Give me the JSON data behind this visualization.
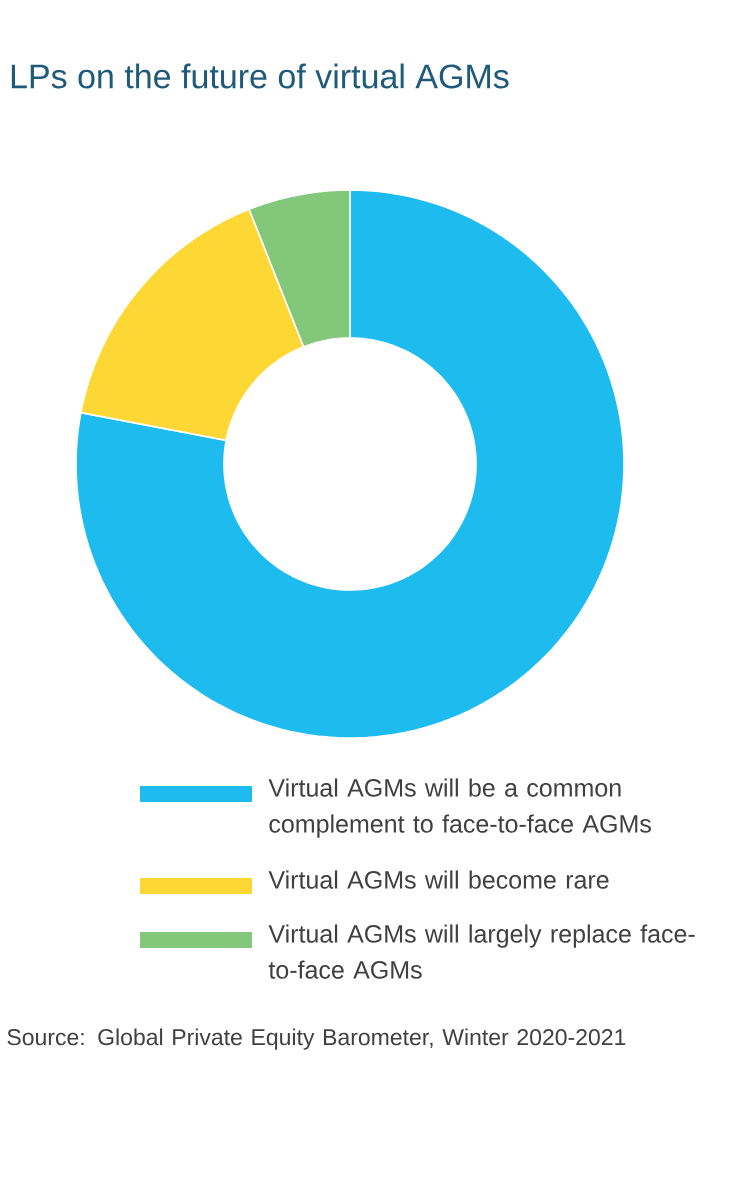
{
  "chart_data": {
    "type": "donut",
    "title": "LPs on the future of virtual AGMs",
    "categories": [
      "Virtual AGMs will be a common complement to face-to-face AGMs",
      "Virtual AGMs will become rare",
      "Virtual AGMs will largely replace face-to-face AGMs"
    ],
    "values": [
      78,
      16,
      6
    ],
    "colors": [
      "#1ebcee",
      "#fdd835",
      "#82c77a"
    ],
    "legend": "bottom",
    "annotations": [
      "Source: Global Private Equity Barometer, Winter 2020-2021"
    ]
  }
}
